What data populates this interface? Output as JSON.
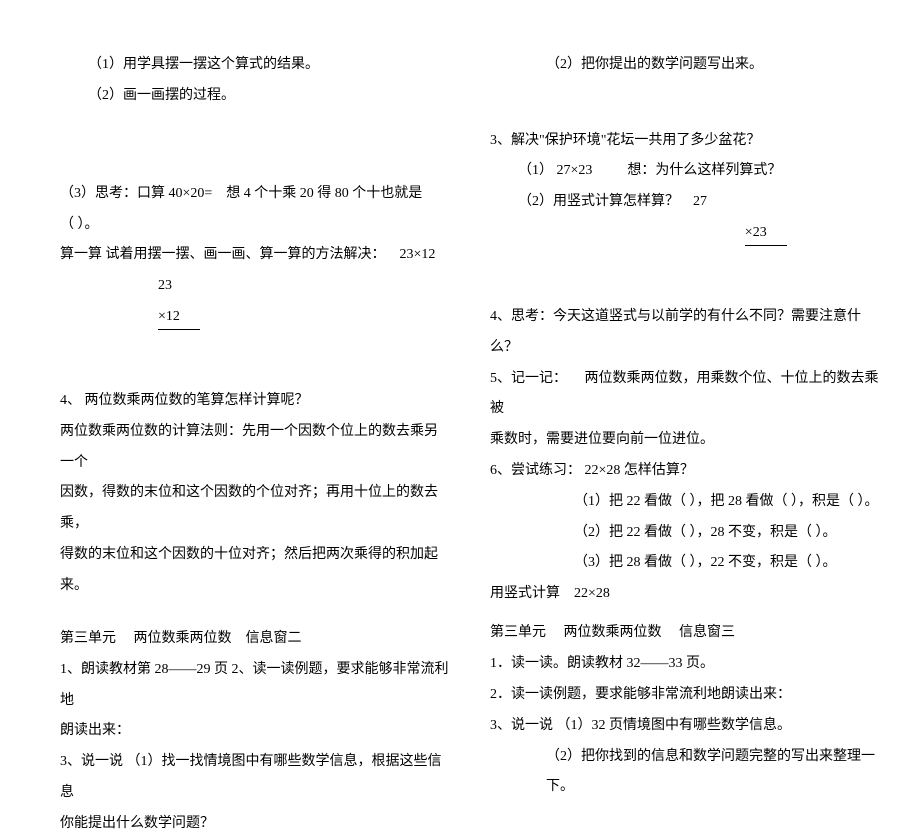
{
  "left": {
    "l1": "（1）用学具摆一摆这个算式的结果。",
    "l2": "（2）画一画摆的过程。",
    "l3a": "（3）思考：口算 40×20=",
    "l3b": "想 4 个十乘 20 得 80 个十也就是",
    "l4": "（   ）。",
    "l5a": "算一算  试着用摆一摆、画一画、算一算的方法解决：",
    "l5b": "23×12",
    "l6": "23",
    "l7": "×12",
    "l8": "4、 两位数乘两位数的笔算怎样计算呢？",
    "l9": "两位数乘两位数的计算法则：先用一个因数个位上的数去乘另一个",
    "l10": "因数，得数的末位和这个因数的个位对齐；再用十位上的数去乘，",
    "l11": "得数的末位和这个因数的十位对齐；然后把两次乘得的积加起来。",
    "l12a": "第三单元",
    "l12b": "两位数乘两位数",
    "l12c": "信息窗二",
    "l13": "1、朗读教材第 28——29 页 2、读一读例题，要求能够非常流利地",
    "l14": "朗读出来：",
    "l15": "3、说一说  （1）找一找情境图中有哪些数学信息，根据这些信息",
    "l16": "你能提出什么数学问题？"
  },
  "right": {
    "r1": "（2）把你提出的数学问题写出来。",
    "r2": "3、解决\"保护环境\"花坛一共用了多少盆花？",
    "r3a": "（1） 27×23",
    "r3b": "想：为什么这样列算式？",
    "r4a": "（2）用竖式计算怎样算？",
    "r4b": "27",
    "r5": "×23",
    "r6": "4、思考：今天这道竖式与以前学的有什么不同？需要注意什么？",
    "r7a": "5、记一记：",
    "r7b": "两位数乘两位数，用乘数个位、十位上的数去乘被",
    "r8": "乘数时，需要进位要向前一位进位。",
    "r9": "6、尝试练习： 22×28 怎样估算？",
    "r10": "（1）把 22 看做（   ），把 28 看做（    ），积是（   ）。",
    "r11": "（2）把 22 看做（   ），28 不变，积是（   ）。",
    "r12": "（3）把 28 看做（   ），22 不变，积是（   ）。",
    "r13a": "用竖式计算",
    "r13b": "22×28",
    "r14a": "第三单元",
    "r14b": "两位数乘两位数",
    "r14c": "信息窗三",
    "r15": "1．读一读。朗读教材 32——33 页。",
    "r16": "2．读一读例题，要求能够非常流利地朗读出来：",
    "r17": "3、说一说  （1）32 页情境图中有哪些数学信息。",
    "r18": "（2）把你找到的信息和数学问题完整的写出来整理一下。"
  }
}
